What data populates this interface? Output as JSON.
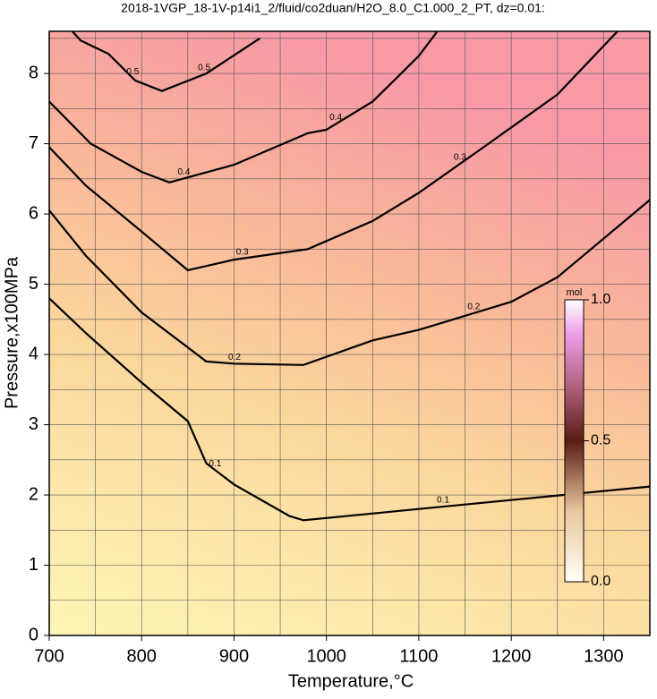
{
  "chart_data": {
    "type": "contour",
    "title": "2018-1VGP_18-1V-p14i1_2/fluid/co2duan/H2O_8.0_C1.000_2_PT, dz=0.01:",
    "xlabel": "Temperature,°C",
    "ylabel": "Pressure,x100MPa",
    "xlim": [
      700,
      1350
    ],
    "ylim": [
      0,
      8.6
    ],
    "xticks": [
      700,
      800,
      900,
      1000,
      1100,
      1200,
      1300
    ],
    "yticks": [
      0,
      1,
      2,
      3,
      4,
      5,
      6,
      7,
      8
    ],
    "xminorticks": [
      750,
      850,
      950,
      1050,
      1150,
      1250
    ],
    "yminorticks": [
      0.5,
      1.5,
      2.5,
      3.5,
      4.5,
      5.5,
      6.5,
      7.5,
      8.5
    ],
    "grid": true,
    "contours": [
      {
        "level": 0.1,
        "x": [
          700,
          740,
          800,
          850,
          870,
          900,
          960,
          975,
          1100,
          1350
        ],
        "y": [
          4.8,
          4.3,
          3.6,
          3.05,
          2.45,
          2.15,
          1.7,
          1.64,
          1.8,
          2.12
        ]
      },
      {
        "level": 0.2,
        "x": [
          700,
          740,
          800,
          870,
          900,
          975,
          1050,
          1100,
          1200,
          1250,
          1350
        ],
        "y": [
          6.05,
          5.4,
          4.6,
          3.9,
          3.87,
          3.85,
          4.2,
          4.35,
          4.75,
          5.1,
          6.2
        ]
      },
      {
        "level": 0.3,
        "x": [
          700,
          740,
          800,
          850,
          900,
          980,
          1050,
          1100,
          1170,
          1250,
          1315
        ],
        "y": [
          6.95,
          6.4,
          5.75,
          5.2,
          5.35,
          5.5,
          5.9,
          6.3,
          6.95,
          7.7,
          8.6
        ]
      },
      {
        "level": 0.4,
        "x": [
          700,
          745,
          800,
          830,
          900,
          980,
          1000,
          1050,
          1100,
          1120
        ],
        "y": [
          7.6,
          7.0,
          6.6,
          6.45,
          6.7,
          7.15,
          7.2,
          7.6,
          8.25,
          8.6
        ]
      },
      {
        "level": 0.5,
        "x": [
          725,
          734,
          764,
          793,
          822,
          870,
          928
        ],
        "y": [
          8.6,
          8.47,
          8.28,
          7.9,
          7.75,
          8.0,
          8.5
        ]
      }
    ],
    "colorbar": {
      "label": "mol",
      "lim": [
        0,
        1
      ],
      "ticks": [
        {
          "value": 0,
          "label": "0.0"
        },
        {
          "value": 0.5,
          "label": "0.5"
        },
        {
          "value": 1,
          "label": "1.0"
        }
      ]
    }
  }
}
